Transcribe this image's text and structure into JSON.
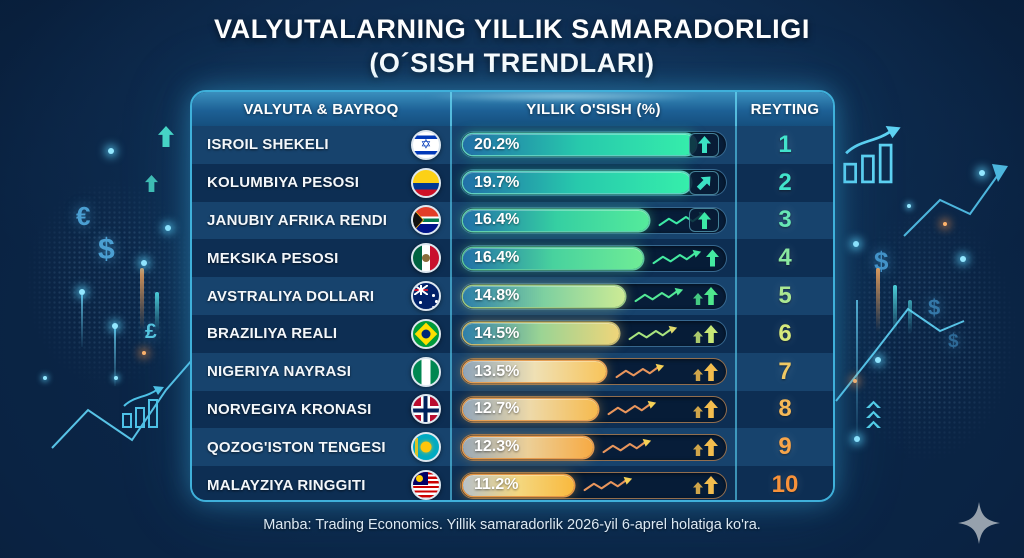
{
  "title": {
    "line1": "VALYUTALARNING YILLIK SAMARADORLIGI",
    "line2": "(O´SISH TRENDLARI)"
  },
  "footer": {
    "source": "Manba: Trading Economics. Yillik samaradorlik 2026-yil 6-aprel holatiga ko'ra."
  },
  "decor": {
    "euro": "€",
    "dollar": "$",
    "pound": "£"
  },
  "theme": {
    "row_odd": "#17436d",
    "row_even": "#0d2e53",
    "track_border_cool": "rgba(95,165,215,0.55)",
    "track_border_warm": "rgba(240,165,95,0.6)",
    "table_border": "#3fb0da"
  },
  "table": {
    "headers": [
      "VALYUTA & BAYROQ",
      "YILLIK O'SISH (%)",
      "REYTING"
    ],
    "rows": [
      {
        "currency": "ISROIL SHEKELI",
        "flag": "israel",
        "growth": "20.2%",
        "fill_pct": 88,
        "bar": [
          "#2170a8",
          "#27c9ac",
          "#36efab"
        ],
        "ring": "rgba(110,232,214,0.85)",
        "glow": "#36efab",
        "track_border": "rgba(95,165,215,0.55)",
        "rank": "1",
        "rank_color": "#42e3cc",
        "icon": "up-boxed",
        "arrow": "#3be2c4",
        "trend": null,
        "trend_head": null
      },
      {
        "currency": "KOLUMBIYA PESOSI",
        "flag": "colombia",
        "growth": "19.7%",
        "fill_pct": 86,
        "bar": [
          "#2170a8",
          "#27c9ac",
          "#36efab"
        ],
        "ring": "rgba(110,232,214,0.85)",
        "glow": "#36efab",
        "track_border": "rgba(95,165,215,0.55)",
        "rank": "2",
        "rank_color": "#42e3cc",
        "icon": "diag-boxed",
        "arrow": "#3be2c4",
        "trend": null,
        "trend_head": null
      },
      {
        "currency": "JANUBIY AFRIKA RENDI",
        "flag": "south-africa",
        "growth": "16.4%",
        "fill_pct": 70,
        "bar": [
          "#2170a8",
          "#35cfa2",
          "#55eb9b"
        ],
        "ring": "rgba(110,232,190,0.85)",
        "glow": "#55eb9b",
        "track_border": "rgba(95,165,215,0.55)",
        "rank": "3",
        "rank_color": "#67e7b5",
        "icon": "up-boxed",
        "arrow": "#3ce9a6",
        "trend": "#3ce9a6",
        "trend_head": "#3ce9a6"
      },
      {
        "currency": "MEKSIKA PESOSI",
        "flag": "mexico",
        "growth": "16.4%",
        "fill_pct": 68,
        "bar": [
          "#2170a8",
          "#48d29e",
          "#6fec96"
        ],
        "ring": "rgba(110,232,180,0.8)",
        "glow": "#6fec96",
        "track_border": "rgba(95,165,215,0.55)",
        "rank": "4",
        "rank_color": "#8ae8a0",
        "icon": "up",
        "arrow": "#44e9a0",
        "trend": "#44e9a0",
        "trend_head": "#44e9a0"
      },
      {
        "currency": "AVSTRALIYA DOLLARI",
        "flag": "australia",
        "growth": "14.8%",
        "fill_pct": 61,
        "bar": [
          "#2d7fa9",
          "#7ed0a0",
          "#cdeb95"
        ],
        "ring": "rgba(185,235,150,0.8)",
        "glow": "#cdeb95",
        "track_border": "rgba(95,165,215,0.55)",
        "rank": "5",
        "rank_color": "#ace992",
        "icon": "double",
        "arrow": "#4fe88e",
        "trend": "#52e896",
        "trend_head": "#52e896"
      },
      {
        "currency": "BRAZILIYA REALI",
        "flag": "brazil",
        "growth": "14.5%",
        "fill_pct": 59,
        "bar": [
          "#2d7fa9",
          "#9bd494",
          "#efd57a"
        ],
        "ring": "rgba(232,215,125,0.8)",
        "glow": "#efd57a",
        "track_border": "rgba(95,165,215,0.55)",
        "rank": "6",
        "rank_color": "#d6ea7c",
        "icon": "double",
        "arrow": "#c8e876",
        "trend": "#a8e47e",
        "trend_head": "#e0da6c"
      },
      {
        "currency": "NIGERIYA NAYRASI",
        "flag": "nigeria",
        "growth": "13.5%",
        "fill_pct": 54,
        "bar": [
          "#8fa4b8",
          "#efe0b4",
          "#f8c45a"
        ],
        "ring": "rgba(248,170,88,0.9)",
        "glow": "#f8c45a",
        "track_border": "rgba(240,165,95,0.6)",
        "rank": "7",
        "rank_color": "#f0c964",
        "icon": "double",
        "arrow": "#f3bd4e",
        "trend": "#e8955c",
        "trend_head": "#f6d156"
      },
      {
        "currency": "NORVEGIYA KRONASI",
        "flag": "norway",
        "growth": "12.7%",
        "fill_pct": 51,
        "bar": [
          "#93a6b9",
          "#eed9a8",
          "#f6ba4e"
        ],
        "ring": "rgba(248,170,88,0.9)",
        "glow": "#f6ba4e",
        "track_border": "rgba(240,165,95,0.6)",
        "rank": "8",
        "rank_color": "#f5b957",
        "icon": "double",
        "arrow": "#f3bd4e",
        "trend": "#e8955c",
        "trend_head": "#f6d156"
      },
      {
        "currency": "QOZOG'ISTON TENGESI",
        "flag": "kazakhstan",
        "growth": "12.3%",
        "fill_pct": 49,
        "bar": [
          "#9aa9b6",
          "#eccf97",
          "#f7aa43"
        ],
        "ring": "rgba(248,165,80,0.9)",
        "glow": "#f7aa43",
        "track_border": "rgba(240,165,95,0.6)",
        "rank": "9",
        "rank_color": "#f7a54a",
        "icon": "double",
        "arrow": "#f3bd4e",
        "trend": "#e8955c",
        "trend_head": "#f6d156"
      },
      {
        "currency": "MALAYZIYA RINGGITI",
        "flag": "malaysia",
        "growth": "11.2%",
        "fill_pct": 42,
        "bar": [
          "#b8c1c8",
          "#f4d77f",
          "#f9b93e"
        ],
        "ring": "rgba(248,160,70,0.9)",
        "glow": "#f9b93e",
        "track_border": "rgba(240,165,95,0.6)",
        "rank": "10",
        "rank_color": "#f8923a",
        "icon": "double",
        "arrow": "#f3bd4e",
        "trend": "#e8955c",
        "trend_head": "#f6d156"
      }
    ]
  },
  "chart_data": {
    "type": "bar",
    "title": "VALYUTALARNING YILLIK SAMARADORLIGI (O´SISH TRENDLARI)",
    "categories": [
      "ISROIL SHEKELI",
      "KOLUMBIYA PESOSI",
      "JANUBIY AFRIKA RENDI",
      "MEKSIKA PESOSI",
      "AVSTRALIYA DOLLARI",
      "BRAZILIYA REALI",
      "NIGERIYA NAYRASI",
      "NORVEGIYA KRONASI",
      "QOZOG'ISTON TENGESI",
      "MALAYZIYA RINGGITI"
    ],
    "values": [
      20.2,
      19.7,
      16.4,
      16.4,
      14.8,
      14.5,
      13.5,
      12.7,
      12.3,
      11.2
    ],
    "ranks": [
      1,
      2,
      3,
      4,
      5,
      6,
      7,
      8,
      9,
      10
    ],
    "xlabel": "YILLIK O'SISH (%)",
    "ylabel": "VALYUTA & BAYROQ",
    "legend": false,
    "grid": false,
    "source": "Trading Economics, 2026-yil 6-aprel"
  }
}
